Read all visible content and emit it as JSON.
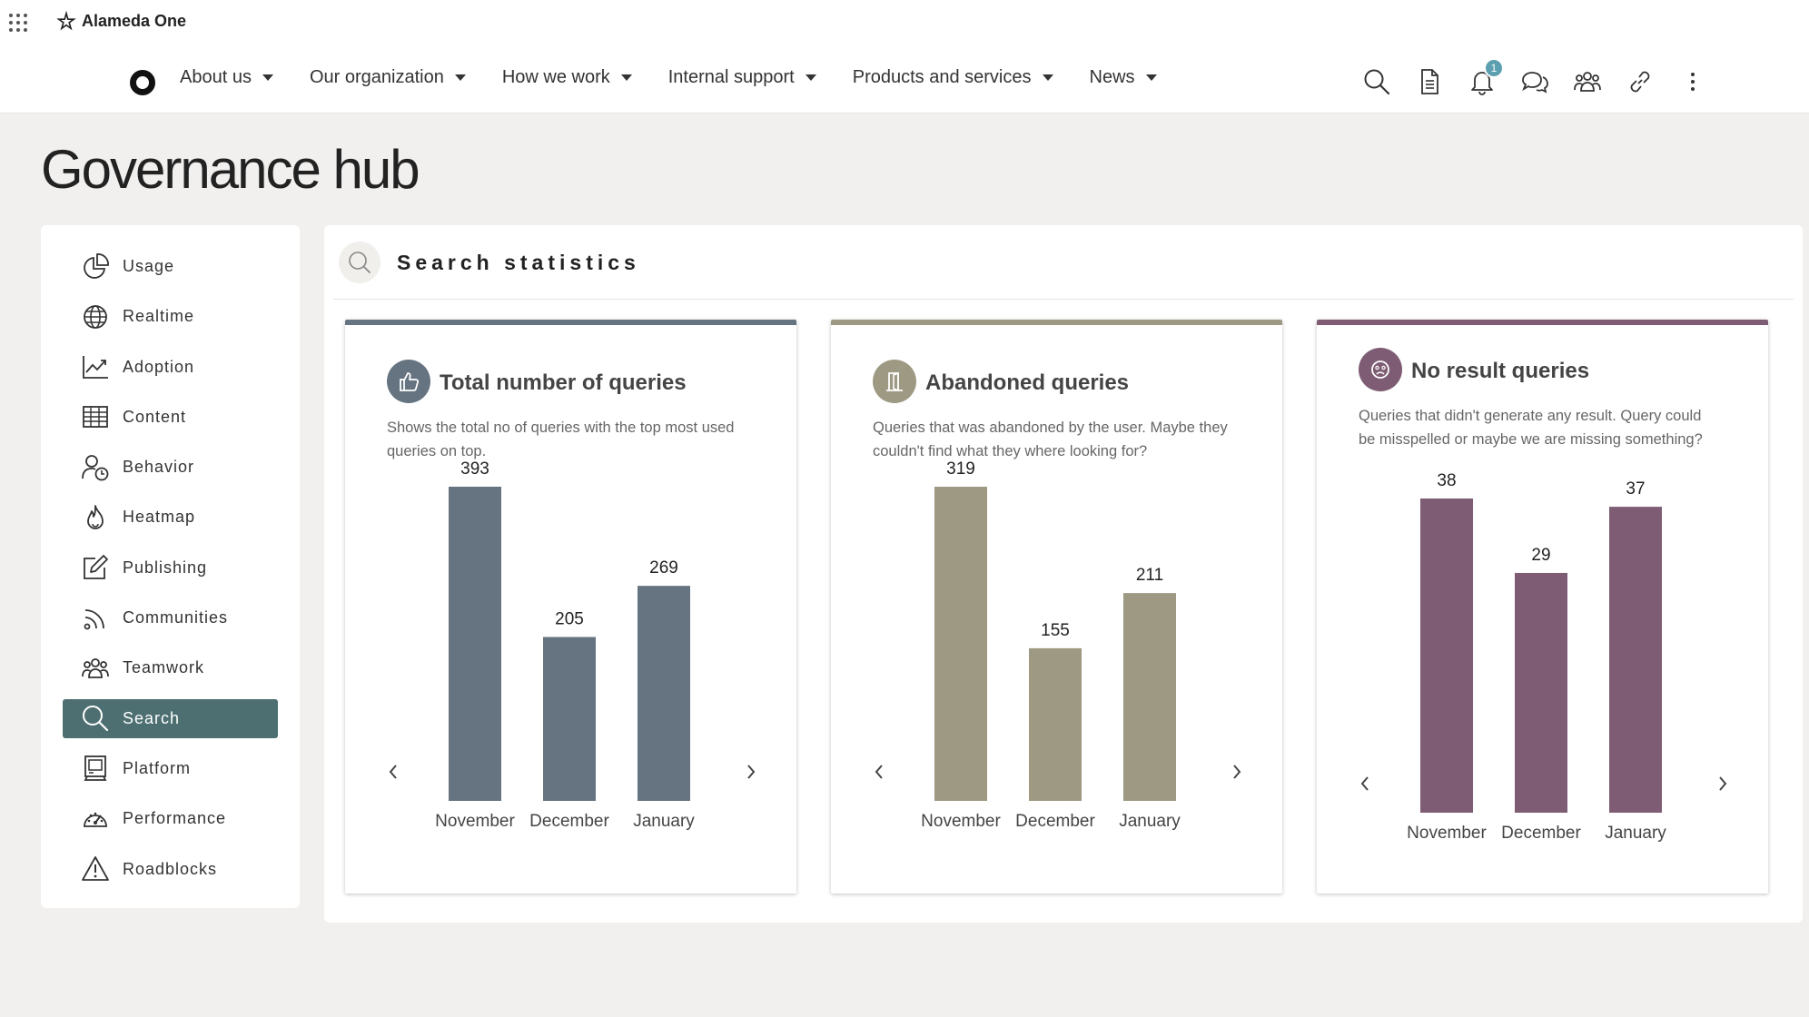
{
  "app": {
    "name": "Alameda One"
  },
  "nav": {
    "items": [
      {
        "label": "About us"
      },
      {
        "label": "Our organization"
      },
      {
        "label": "How we work"
      },
      {
        "label": "Internal support"
      },
      {
        "label": "Products and services"
      },
      {
        "label": "News"
      }
    ],
    "notification_count": "1"
  },
  "page": {
    "title": "Governance hub"
  },
  "sidebar": {
    "items": [
      {
        "label": "Usage",
        "icon": "pie-chart-icon"
      },
      {
        "label": "Realtime",
        "icon": "globe-icon"
      },
      {
        "label": "Adoption",
        "icon": "trend-chart-icon"
      },
      {
        "label": "Content",
        "icon": "table-grid-icon"
      },
      {
        "label": "Behavior",
        "icon": "user-clock-icon"
      },
      {
        "label": "Heatmap",
        "icon": "flame-icon"
      },
      {
        "label": "Publishing",
        "icon": "edit-icon"
      },
      {
        "label": "Communities",
        "icon": "rss-icon"
      },
      {
        "label": "Teamwork",
        "icon": "team-icon"
      },
      {
        "label": "Search",
        "icon": "search-icon",
        "active": true
      },
      {
        "label": "Platform",
        "icon": "computer-icon"
      },
      {
        "label": "Performance",
        "icon": "gauge-icon"
      },
      {
        "label": "Roadblocks",
        "icon": "warning-icon"
      }
    ],
    "active_color": "#4d6f72"
  },
  "panel": {
    "title": "Search statistics"
  },
  "cards": [
    {
      "title": "Total number of queries",
      "description": "Shows the total no of queries with the top most used queries on top.",
      "color": "#657480",
      "icon": "thumbs-up-icon"
    },
    {
      "title": "Abandoned queries",
      "description": "Queries that was abandoned by the user. Maybe they couldn't find what they where looking for?",
      "color": "#9d9982",
      "icon": "door-exit-icon"
    },
    {
      "title": "No result queries",
      "description": "Queries that didn't generate any result. Query could be misspelled or maybe we are missing something?",
      "color": "#7e5c73",
      "icon": "sad-face-icon"
    }
  ],
  "chart_data": [
    {
      "type": "bar",
      "title": "Total number of queries",
      "categories": [
        "November",
        "December",
        "January"
      ],
      "values": [
        393,
        205,
        269
      ],
      "ylim": [
        0,
        393
      ],
      "grid": false,
      "color": "#657480"
    },
    {
      "type": "bar",
      "title": "Abandoned queries",
      "categories": [
        "November",
        "December",
        "January"
      ],
      "values": [
        319,
        155,
        211
      ],
      "ylim": [
        0,
        319
      ],
      "grid": false,
      "color": "#9d9982"
    },
    {
      "type": "bar",
      "title": "No result queries",
      "categories": [
        "November",
        "December",
        "January"
      ],
      "values": [
        38,
        29,
        37
      ],
      "ylim": [
        0,
        38
      ],
      "grid": false,
      "color": "#7e5c73"
    }
  ]
}
